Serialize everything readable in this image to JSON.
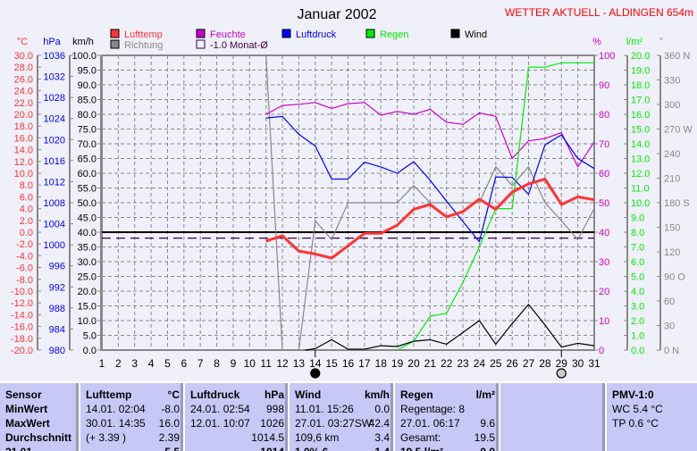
{
  "header": {
    "title": "Januar 2002",
    "station": "WETTER AKTUELL - ALDINGEN 654m"
  },
  "legend": [
    {
      "label": "Lufttemp",
      "color": "#ff3333"
    },
    {
      "label": "Feuchte",
      "color": "#cc00cc"
    },
    {
      "label": "Luftdruck",
      "color": "#0000ff"
    },
    {
      "label": "Regen",
      "color": "#00ee00"
    },
    {
      "label": "Wind",
      "color": "#000000"
    },
    {
      "label": "Richtung",
      "color": "#888888"
    },
    {
      "label": "-1.0 Monat-Ø",
      "color": "#400040"
    }
  ],
  "chart_data": {
    "type": "line",
    "title": "Januar 2002",
    "x": [
      1,
      2,
      3,
      4,
      5,
      6,
      7,
      8,
      9,
      10,
      11,
      12,
      13,
      14,
      15,
      16,
      17,
      18,
      19,
      20,
      21,
      22,
      23,
      24,
      25,
      26,
      27,
      28,
      29,
      30,
      31
    ],
    "xlabel": "Tag",
    "axes": {
      "temp": {
        "unit": "°C",
        "range": [
          -20,
          30
        ],
        "ticks": [
          "30.0",
          "28.0",
          "26.0",
          "24.0",
          "22.0",
          "20.0",
          "18.0",
          "16.0",
          "14.0",
          "12.0",
          "10.0",
          "8.0",
          "6.0",
          "4.0",
          "2.0",
          "0.0",
          "-2.0",
          "-4.0",
          "-6.0",
          "-8.0",
          "-10.0",
          "-12.0",
          "-14.0",
          "-16.0",
          "-18.0",
          "-20.0"
        ]
      },
      "pressure": {
        "unit": "hPa",
        "range": [
          980,
          1036
        ],
        "ticks": [
          "1036",
          "1032",
          "1028",
          "1024",
          "1020",
          "1016",
          "1012",
          "1008",
          "1004",
          "1000",
          "996",
          "992",
          "988",
          "984",
          "980"
        ]
      },
      "wind": {
        "unit": "km/h",
        "range": [
          0,
          100
        ],
        "ticks": [
          "100.0",
          "95.0",
          "90.0",
          "85.0",
          "80.0",
          "75.0",
          "70.0",
          "65.0",
          "60.0",
          "55.0",
          "50.0",
          "45.0",
          "40.0",
          "35.0",
          "30.0",
          "25.0",
          "20.0",
          "15.0",
          "10.0",
          "5.0",
          "0.0"
        ]
      },
      "humidity": {
        "unit": "%",
        "range": [
          0,
          100
        ],
        "ticks": [
          "100",
          "90",
          "80",
          "70",
          "60",
          "50",
          "40",
          "30",
          "20",
          "10",
          "0"
        ]
      },
      "rain": {
        "unit": "l/m²",
        "range": [
          0,
          20
        ],
        "ticks": [
          "20.0",
          "19.0",
          "18.0",
          "17.0",
          "16.0",
          "15.0",
          "14.0",
          "13.0",
          "12.0",
          "11.0",
          "10.0",
          "9.0",
          "8.0",
          "7.0",
          "6.0",
          "5.0",
          "4.0",
          "3.0",
          "2.0",
          "1.0",
          "0.0"
        ]
      },
      "direction": {
        "unit": "°",
        "range": [
          0,
          360
        ],
        "ticks": [
          "360 N",
          "330",
          "300",
          "270 W",
          "240",
          "210",
          "180 S",
          "150",
          "120",
          "90 O",
          "60",
          "30",
          "0 N"
        ]
      }
    },
    "series": [
      {
        "name": "Lufttemp",
        "axis": "temp",
        "color": "#ff3333",
        "x": [
          11,
          12,
          13,
          14,
          15,
          16,
          17,
          18,
          19,
          20,
          21,
          22,
          23,
          24,
          25,
          26,
          27,
          28,
          29,
          30,
          31
        ],
        "values": [
          -1.5,
          -0.6,
          -3.2,
          -3.7,
          -4.4,
          -2.3,
          -0.2,
          -0.2,
          1.2,
          3.9,
          4.7,
          2.6,
          3.5,
          5.6,
          3.9,
          6.8,
          8.2,
          9.0,
          4.7,
          6.0,
          5.5
        ]
      },
      {
        "name": "Feuchte",
        "axis": "humidity",
        "color": "#cc00cc",
        "x": [
          11,
          12,
          13,
          14,
          15,
          16,
          17,
          18,
          19,
          20,
          21,
          22,
          23,
          24,
          25,
          26,
          27,
          28,
          29,
          30,
          31
        ],
        "values": [
          80,
          83,
          83.4,
          84,
          82,
          83.6,
          84,
          79.7,
          81,
          80,
          81.7,
          77.3,
          76.6,
          80.5,
          79.3,
          65,
          71,
          71.8,
          73.8,
          62.2,
          70.6
        ]
      },
      {
        "name": "Luftdruck",
        "axis": "pressure",
        "color": "#0000ff",
        "x": [
          11,
          12,
          13,
          14,
          15,
          16,
          17,
          18,
          19,
          20,
          21,
          22,
          23,
          24,
          25,
          26,
          27,
          28,
          29,
          30,
          31
        ],
        "values": [
          1024.1,
          1024.4,
          1021,
          1018.8,
          1012.5,
          1012.5,
          1015.7,
          1014.8,
          1013.6,
          1015.8,
          1012.3,
          1008.3,
          1004.4,
          1000.6,
          1012.9,
          1012.8,
          1009.6,
          1019,
          1020.9,
          1016.4,
          1014.5
        ]
      },
      {
        "name": "Regen",
        "axis": "rain",
        "color": "#00ee00",
        "x": [
          19,
          20,
          21,
          22,
          23,
          24,
          25,
          26,
          27,
          28,
          29,
          30,
          31
        ],
        "values": [
          0,
          0.6,
          2.3,
          2.5,
          4.6,
          7.0,
          9.6,
          9.6,
          19.2,
          19.2,
          19.5,
          19.5,
          19.5
        ]
      },
      {
        "name": "Wind",
        "axis": "wind",
        "color": "#000000",
        "x": [
          13.4,
          14,
          15,
          16,
          17,
          18,
          19,
          20,
          21,
          22,
          23,
          24,
          25,
          26,
          27,
          28,
          29,
          30,
          31
        ],
        "values": [
          0,
          0.5,
          3.5,
          0.3,
          0.3,
          1.5,
          1.2,
          3,
          3.5,
          2,
          6,
          10,
          2,
          9,
          15.5,
          8.5,
          1,
          2.3,
          1.5
        ]
      },
      {
        "name": "Richtung",
        "axis": "direction",
        "color": "#888888",
        "x": [
          11,
          12,
          13,
          14,
          15,
          16,
          17,
          18,
          19,
          20,
          21,
          22,
          23,
          24,
          25,
          26,
          27,
          28,
          29,
          30,
          31
        ],
        "values": [
          360,
          0,
          0,
          158,
          135,
          180,
          180,
          180,
          180,
          201,
          180,
          180,
          180,
          180,
          224,
          201,
          224,
          180,
          158,
          135,
          173
        ]
      }
    ],
    "reference_lines": [
      {
        "name": "0 °C",
        "axis": "temp",
        "value": 0,
        "color": "#000000",
        "style": "solid"
      },
      {
        "name": "-1.0 Monat-Ø",
        "axis": "temp",
        "value": -1.0,
        "color": "#400040",
        "style": "dashed"
      }
    ],
    "moon_phases": [
      {
        "day": 14,
        "phase": "Neumond"
      },
      {
        "day": 29,
        "phase": "Vollmond"
      }
    ],
    "grid": true
  },
  "stats": {
    "sensor": {
      "header": "Sensor",
      "rows": [
        "MinWert",
        "MaxWert",
        "Durchschnitt",
        "31.01."
      ]
    },
    "columns": [
      {
        "name": "Lufttemp",
        "unit": "°C",
        "rows": [
          [
            "14.01.  02:04",
            "-8.0"
          ],
          [
            "30.01.  14:35",
            "16.0"
          ],
          [
            "(+ 3.39 )",
            "2.39"
          ],
          [
            "",
            "5.5"
          ]
        ]
      },
      {
        "name": "Luftdruck",
        "unit": "hPa",
        "rows": [
          [
            "24.01.  02:54",
            "998"
          ],
          [
            "12.01.  10:07",
            "1026"
          ],
          [
            "",
            "1014.5"
          ],
          [
            "",
            "1014"
          ]
        ]
      },
      {
        "name": "Wind",
        "unit": "km/h",
        "rows": [
          [
            "11.01.  15:26",
            "0.0"
          ],
          [
            "27.01.  03:27SW",
            "42.4"
          ],
          [
            "109,6 km",
            "3.4"
          ],
          [
            "1.0% 6",
            "1.4"
          ]
        ]
      },
      {
        "name": "Regen",
        "unit": "l/m²",
        "rows": [
          [
            "Regentage: 8",
            ""
          ],
          [
            "27.01.  06:17",
            "9.6"
          ],
          [
            "Gesamt:",
            "19.5"
          ],
          [
            "19.5 l/m²",
            "0.0"
          ]
        ]
      },
      {
        "name": "",
        "unit": "",
        "rows": []
      },
      {
        "name": "PMV-1:0",
        "unit": "",
        "rows": [
          [
            "WC 5.4 °C",
            ""
          ],
          [
            "TP 0.6 °C",
            ""
          ]
        ]
      }
    ]
  }
}
